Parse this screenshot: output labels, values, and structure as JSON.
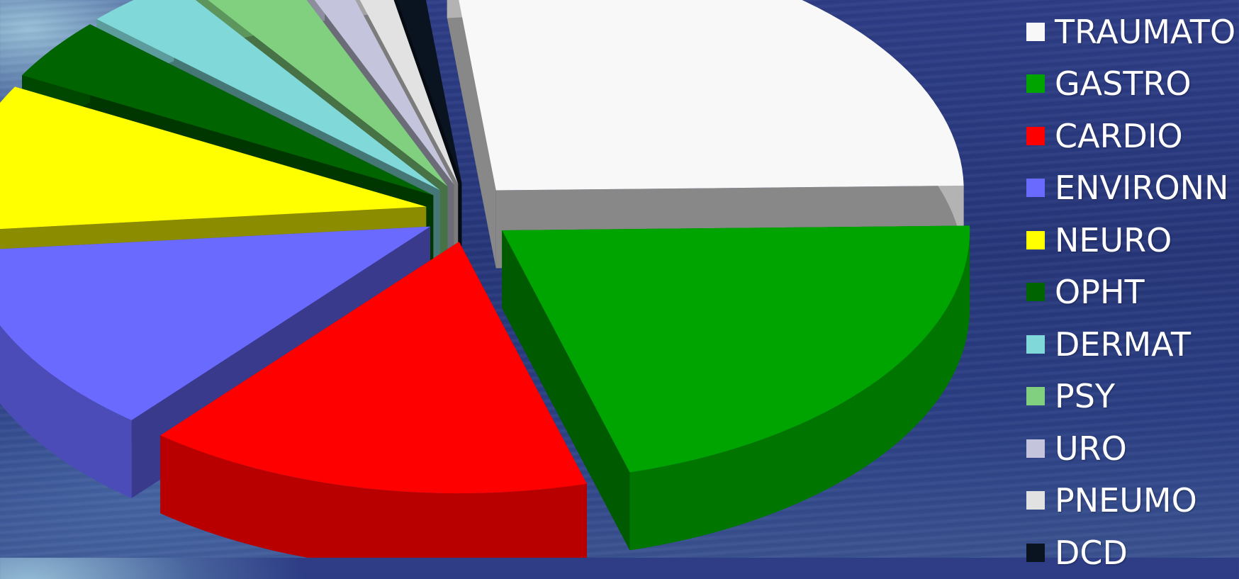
{
  "chart_data": {
    "type": "pie",
    "style": "3d-exploded",
    "legend_position": "right",
    "series": [
      {
        "name": "TRAUMATO",
        "value": 26.5,
        "color": "#f8f8f8",
        "label_color": "#ffffff"
      },
      {
        "name": "GASTRO",
        "value": 21.0,
        "color": "#00a400",
        "label_color": "#00a400"
      },
      {
        "name": "CARDIO",
        "value": 15.5,
        "color": "#ff0000",
        "label_color": "#ff0000"
      },
      {
        "name": "ENVIRONN",
        "value": 12.5,
        "color": "#6a6aff",
        "label_color": "#6a6aff"
      },
      {
        "name": "NEURO",
        "value": 9.5,
        "color": "#ffff00",
        "label_color": "#ffff00"
      },
      {
        "name": "OPHT",
        "value": 4.0,
        "color": "#006400",
        "label_color": "#006400"
      },
      {
        "name": "DERMAT",
        "value": 3.5,
        "color": "#80d8d8",
        "label_color": "#80d8d8"
      },
      {
        "name": "PSY",
        "value": 3.5,
        "color": "#80d080",
        "label_color": "#80d080"
      },
      {
        "name": "URO",
        "value": 1.7,
        "color": "#c4c4dc",
        "label_color": "#c4c4dc"
      },
      {
        "name": "PNEUMO",
        "value": 1.5,
        "color": "#e2e2e2",
        "label_color": "#e2e2e2"
      },
      {
        "name": "DCD",
        "value": 1.3,
        "color": "#0a1420",
        "label_color": "#0a1420"
      }
    ]
  }
}
